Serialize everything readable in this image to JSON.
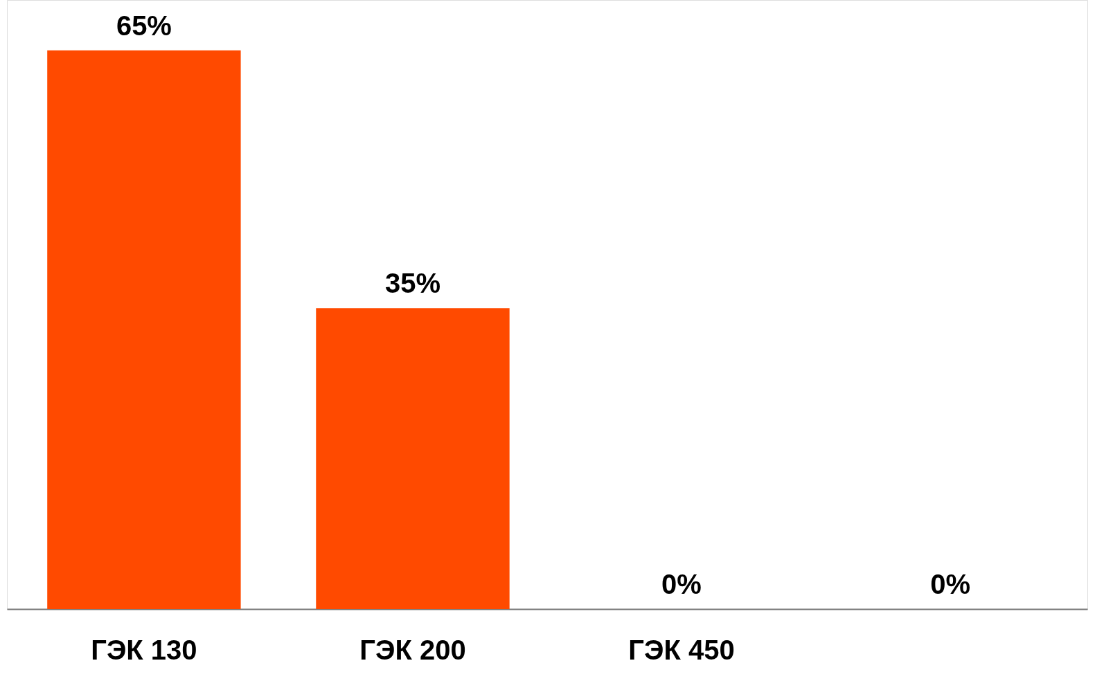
{
  "chart_data": {
    "type": "bar",
    "categories": [
      "ГЭК 130",
      "ГЭК 200",
      "ГЭК 450",
      null
    ],
    "values": [
      65,
      35,
      0,
      0
    ],
    "color": "#ff4a00",
    "value_labels": [
      "65%",
      "35%",
      "0%",
      "0%"
    ]
  }
}
